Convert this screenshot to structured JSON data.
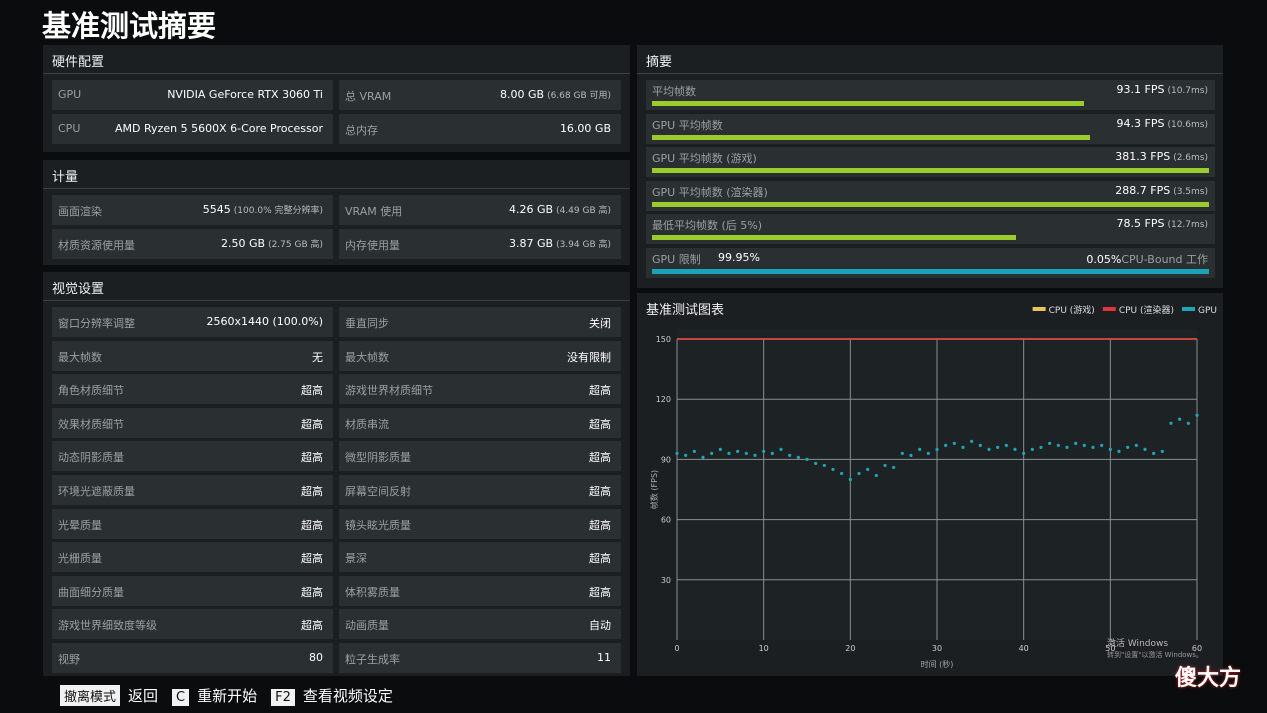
{
  "title": "基准测试摘要",
  "hardware": {
    "title": "硬件配置",
    "rows": [
      [
        {
          "label": "GPU",
          "value": "NVIDIA GeForce RTX 3060 Ti"
        },
        {
          "label": "总 VRAM",
          "value": "8.00 GB",
          "note": "(6.68 GB 可用)"
        }
      ],
      [
        {
          "label": "CPU",
          "value": "AMD Ryzen 5 5600X 6-Core Processor"
        },
        {
          "label": "总内存",
          "value": "16.00 GB"
        }
      ]
    ]
  },
  "metrics": {
    "title": "计量",
    "rows": [
      [
        {
          "label": "画面渲染",
          "value": "5545",
          "note": "(100.0% 完整分辨率)"
        },
        {
          "label": "VRAM 使用",
          "value": "4.26 GB",
          "note": "(4.49 GB 高)"
        }
      ],
      [
        {
          "label": "材质资源使用量",
          "value": "2.50 GB",
          "note": "(2.75 GB 高)"
        },
        {
          "label": "内存使用量",
          "value": "3.87 GB",
          "note": "(3.94 GB 高)"
        }
      ]
    ]
  },
  "visual": {
    "title": "视觉设置",
    "rows": [
      [
        {
          "label": "窗口分辨率调整",
          "value": "2560x1440 (100.0%)"
        },
        {
          "label": "垂直同步",
          "value": "关闭"
        }
      ],
      [
        {
          "label": "最大帧数",
          "value": "无"
        },
        {
          "label": "最大帧数",
          "value": "没有限制"
        }
      ],
      [
        {
          "label": "角色材质细节",
          "value": "超高"
        },
        {
          "label": "游戏世界材质细节",
          "value": "超高"
        }
      ],
      [
        {
          "label": "效果材质细节",
          "value": "超高"
        },
        {
          "label": "材质串流",
          "value": "超高"
        }
      ],
      [
        {
          "label": "动态阴影质量",
          "value": "超高"
        },
        {
          "label": "微型阴影质量",
          "value": "超高"
        }
      ],
      [
        {
          "label": "环境光遮蔽质量",
          "value": "超高"
        },
        {
          "label": "屏幕空间反射",
          "value": "超高"
        }
      ],
      [
        {
          "label": "光晕质量",
          "value": "超高"
        },
        {
          "label": "镜头眩光质量",
          "value": "超高"
        }
      ],
      [
        {
          "label": "光栅质量",
          "value": "超高"
        },
        {
          "label": "景深",
          "value": "超高"
        }
      ],
      [
        {
          "label": "曲面细分质量",
          "value": "超高"
        },
        {
          "label": "体积雾质量",
          "value": "超高"
        }
      ],
      [
        {
          "label": "游戏世界细致度等级",
          "value": "超高"
        },
        {
          "label": "动画质量",
          "value": "自动"
        }
      ],
      [
        {
          "label": "视野",
          "value": "80"
        },
        {
          "label": "粒子生成率",
          "value": "11"
        }
      ]
    ]
  },
  "summary": {
    "title": "摘要",
    "bar_color": "#9ccc2c",
    "bar_lim": [
      0,
      120
    ],
    "rows": [
      {
        "label": "平均帧数",
        "fps": 93.1,
        "fps_label": "93.1 FPS",
        "note": "(10.7ms)"
      },
      {
        "label": "GPU 平均帧数",
        "fps": 94.3,
        "fps_label": "94.3 FPS",
        "note": "(10.6ms)"
      },
      {
        "label": "GPU 平均帧数 (游戏)",
        "fps": 381.3,
        "fps_label": "381.3 FPS",
        "note": "(2.6ms)"
      },
      {
        "label": "GPU 平均帧数 (渲染器)",
        "fps": 288.7,
        "fps_label": "288.7 FPS",
        "note": "(3.5ms)"
      },
      {
        "label": "最低平均帧数 (后 5%)",
        "fps": 78.5,
        "fps_label": "78.5 FPS",
        "note": "(12.7ms)"
      }
    ],
    "bound": {
      "label": "GPU 限制",
      "gpu_pct": 99.95,
      "gpu_label": "99.95%",
      "cpu_pct": 0.05,
      "cpu_label": "0.05%",
      "cpu_text": "CPU-Bound 工作",
      "color": "#1ba3b8"
    }
  },
  "chart_data": {
    "type": "scatter",
    "title": "基准测试图表",
    "x_label": "时间 (秒)",
    "y_label": "帧数 (FPS)",
    "xlim": [
      0,
      60
    ],
    "xticks": [
      0,
      10,
      20,
      30,
      40,
      50,
      60
    ],
    "ylim": [
      0,
      150
    ],
    "yticks": [
      30,
      60,
      90,
      120,
      150
    ],
    "grid": true,
    "legend": "top-right",
    "x": [
      0,
      1,
      2,
      3,
      4,
      5,
      6,
      7,
      8,
      9,
      10,
      11,
      12,
      13,
      14,
      15,
      16,
      17,
      18,
      19,
      20,
      21,
      22,
      23,
      24,
      25,
      26,
      27,
      28,
      29,
      30,
      31,
      32,
      33,
      34,
      35,
      36,
      37,
      38,
      39,
      40,
      41,
      42,
      43,
      44,
      45,
      46,
      47,
      48,
      49,
      50,
      51,
      52,
      53,
      54,
      55,
      56,
      57,
      58,
      59,
      60
    ],
    "series": [
      {
        "name": "CPU (游戏)",
        "color": "#e8c65a",
        "values": [
          150,
          150,
          150,
          150,
          150,
          150,
          150,
          150,
          150,
          150,
          150,
          150,
          150,
          150,
          150,
          150,
          150,
          150,
          150,
          150,
          150,
          150,
          150,
          150,
          150,
          150,
          150,
          150,
          150,
          150,
          150,
          150,
          150,
          150,
          150,
          150,
          150,
          150,
          150,
          150,
          150,
          150,
          150,
          150,
          150,
          150,
          150,
          150,
          150,
          150,
          150,
          150,
          150,
          150,
          150,
          150,
          150,
          150,
          150,
          150,
          150
        ]
      },
      {
        "name": "CPU (渲染器)",
        "color": "#e0353f",
        "values": [
          150,
          150,
          150,
          150,
          150,
          150,
          150,
          150,
          150,
          150,
          150,
          150,
          150,
          150,
          150,
          150,
          150,
          150,
          150,
          150,
          150,
          150,
          150,
          150,
          150,
          150,
          150,
          150,
          150,
          150,
          150,
          150,
          150,
          150,
          150,
          150,
          150,
          150,
          150,
          150,
          150,
          150,
          150,
          150,
          150,
          150,
          150,
          150,
          150,
          150,
          150,
          150,
          150,
          150,
          150,
          150,
          150,
          150,
          150,
          150,
          150
        ]
      },
      {
        "name": "GPU",
        "color": "#1fa5b5",
        "values": [
          93,
          92,
          94,
          91,
          93,
          95,
          93,
          94,
          93,
          92,
          94,
          93,
          95,
          92,
          91,
          90,
          88,
          87,
          85,
          83,
          80,
          83,
          85,
          82,
          87,
          86,
          93,
          92,
          95,
          93,
          95,
          97,
          98,
          96,
          99,
          97,
          95,
          96,
          97,
          95,
          93,
          95,
          96,
          98,
          97,
          96,
          98,
          97,
          96,
          97,
          95,
          94,
          96,
          97,
          95,
          93,
          94,
          108,
          110,
          108,
          112
        ]
      }
    ]
  },
  "footer": [
    {
      "key": "撤离模式",
      "text": "返回"
    },
    {
      "key": "C",
      "text": "重新开始"
    },
    {
      "key": "F2",
      "text": "查看视频设定"
    }
  ],
  "overlay": {
    "activate": "激活 Windows",
    "activate_hint": "转到\"设置\"以激活 Windows。",
    "logo": "傻大方"
  }
}
